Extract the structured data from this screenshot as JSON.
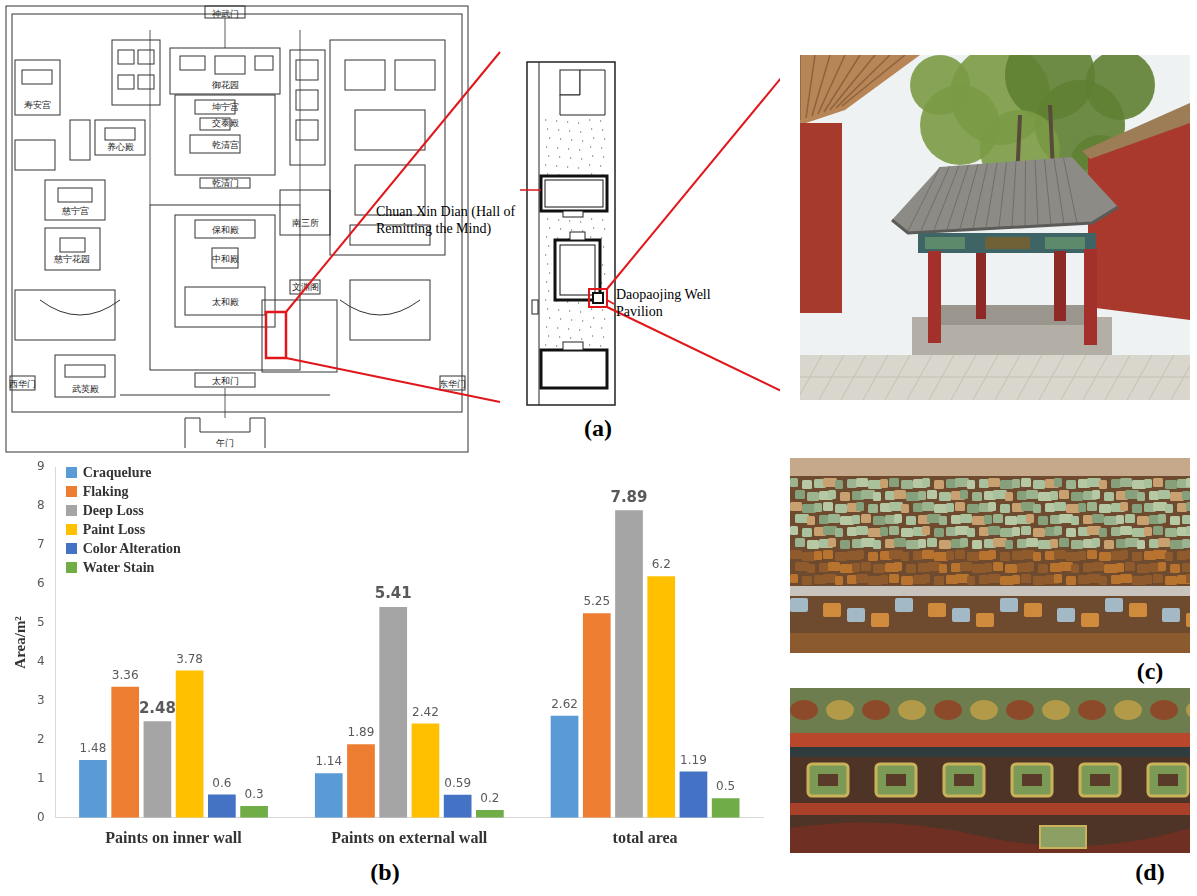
{
  "panels": {
    "a": {
      "letter": "(a)",
      "map_labels": [
        "神武门",
        "御花园",
        "坤宁宫",
        "交泰殿",
        "乾清宫",
        "乾清门",
        "保和殿",
        "中和殿",
        "太和殿",
        "太和门",
        "午门",
        "东华门",
        "西华门",
        "武英殿",
        "文渊阁",
        "慈宁宫",
        "慈宁花园",
        "寿安宫",
        "养心殿",
        "南三所"
      ],
      "hall_label": "Chuan Xin Dian (Hall of Remitting the Mind)",
      "well_label": "Daopaojing Well Pavilion"
    },
    "b": {
      "letter": "(b)"
    },
    "c": {
      "letter": "(c)"
    },
    "d": {
      "letter": "(d)"
    }
  },
  "chart_data": {
    "type": "bar",
    "categories": [
      "Paints on inner wall",
      "Paints on external wall",
      "total area"
    ],
    "series": [
      {
        "name": "Craquelure",
        "color": "#5b9bd5",
        "values": [
          1.48,
          1.14,
          2.62
        ]
      },
      {
        "name": "Flaking",
        "color": "#ed7d31",
        "values": [
          3.36,
          1.89,
          5.25
        ]
      },
      {
        "name": "Deep Loss",
        "color": "#a5a5a5",
        "values": [
          2.48,
          5.41,
          7.89
        ]
      },
      {
        "name": "Paint Loss",
        "color": "#ffc000",
        "values": [
          3.78,
          2.42,
          6.2
        ]
      },
      {
        "name": "Color Alteration",
        "color": "#4472c4",
        "values": [
          0.6,
          0.59,
          1.19
        ]
      },
      {
        "name": "Water Stain",
        "color": "#70ad47",
        "values": [
          0.3,
          0.2,
          0.5
        ]
      }
    ],
    "y_label": "Area/m²",
    "ylim": [
      0,
      9
    ],
    "yticks": [
      0,
      1,
      2,
      3,
      4,
      5,
      6,
      7,
      8,
      9
    ],
    "grid": false,
    "legend": "top-left",
    "data_labels": true
  }
}
